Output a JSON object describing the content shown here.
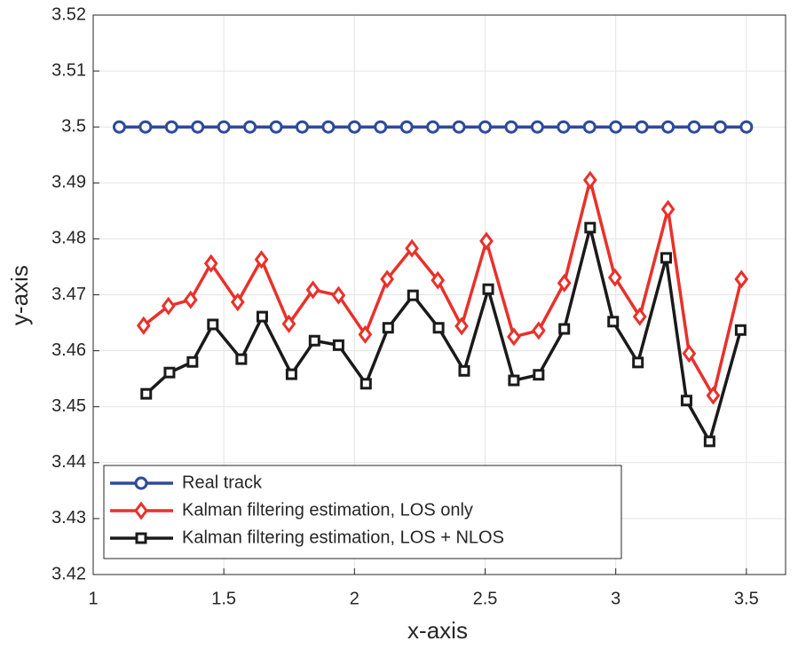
{
  "chart_data": {
    "type": "line",
    "xlabel": "x-axis",
    "ylabel": "y-axis",
    "xlim": [
      1,
      3.65
    ],
    "ylim": [
      3.42,
      3.52
    ],
    "xticks": [
      1,
      1.5,
      2,
      2.5,
      3,
      3.5
    ],
    "yticks": [
      3.42,
      3.43,
      3.44,
      3.45,
      3.46,
      3.47,
      3.48,
      3.49,
      3.5,
      3.51,
      3.52
    ],
    "grid": true,
    "legend": "lower left",
    "series": [
      {
        "name": "Real track",
        "color": "#2e4a9b",
        "marker": "circle",
        "x": [
          1.1,
          1.2,
          1.3,
          1.4,
          1.5,
          1.6,
          1.7,
          1.8,
          1.9,
          2.0,
          2.1,
          2.2,
          2.3,
          2.4,
          2.5,
          2.6,
          2.7,
          2.8,
          2.9,
          3.0,
          3.1,
          3.2,
          3.3,
          3.4,
          3.5
        ],
        "values": [
          3.5,
          3.5,
          3.5,
          3.5,
          3.5,
          3.5,
          3.5,
          3.5,
          3.5,
          3.5,
          3.5,
          3.5,
          3.5,
          3.5,
          3.5,
          3.5,
          3.5,
          3.5,
          3.5,
          3.5,
          3.5,
          3.5,
          3.5,
          3.5,
          3.5
        ]
      },
      {
        "name": "Kalman filtering estimation, LOS only",
        "color": "#e8312a",
        "marker": "diamond",
        "x": [
          1.193,
          1.288,
          1.373,
          1.451,
          1.553,
          1.644,
          1.749,
          1.841,
          1.939,
          2.041,
          2.125,
          2.22,
          2.319,
          2.41,
          2.505,
          2.61,
          2.705,
          2.803,
          2.902,
          2.997,
          3.092,
          3.2,
          3.281,
          3.373,
          3.481
        ],
        "values": [
          3.4645,
          3.468,
          3.4691,
          3.4756,
          3.4687,
          3.4763,
          3.4648,
          3.4709,
          3.4699,
          3.4629,
          3.4728,
          3.4783,
          3.4726,
          3.4644,
          3.4796,
          3.4625,
          3.4636,
          3.4721,
          3.4905,
          3.4731,
          3.4661,
          3.4853,
          3.4595,
          3.452,
          3.4728
        ]
      },
      {
        "name": "Kalman filtering estimation, LOS + NLOS",
        "color": "#1a1a1a",
        "marker": "square",
        "x": [
          1.203,
          1.292,
          1.38,
          1.458,
          1.567,
          1.647,
          1.759,
          1.847,
          1.939,
          2.044,
          2.129,
          2.224,
          2.322,
          2.42,
          2.512,
          2.61,
          2.705,
          2.803,
          2.902,
          2.99,
          3.085,
          3.193,
          3.271,
          3.359,
          3.478
        ],
        "values": [
          3.4523,
          3.4561,
          3.458,
          3.4647,
          3.4585,
          3.4661,
          3.4558,
          3.4618,
          3.461,
          3.4541,
          3.4641,
          3.4699,
          3.4641,
          3.4564,
          3.471,
          3.4547,
          3.4557,
          3.4639,
          3.482,
          3.4652,
          3.4579,
          3.4766,
          3.4511,
          3.4438,
          3.4637
        ]
      }
    ]
  }
}
